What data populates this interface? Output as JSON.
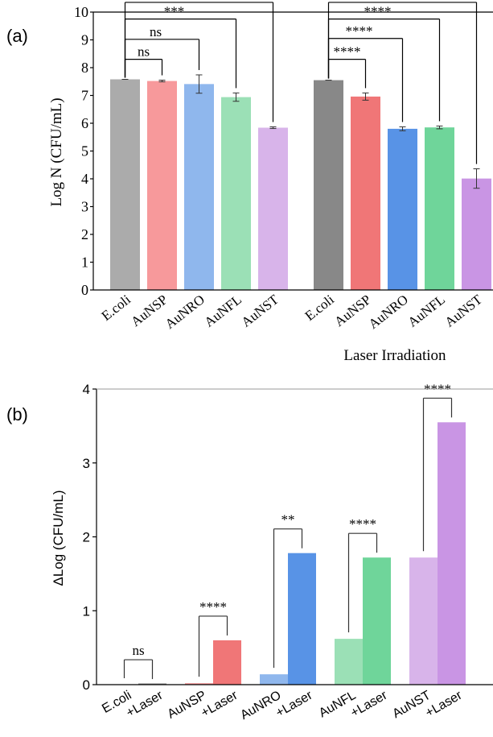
{
  "chart_data": [
    {
      "panel_label": "(a)",
      "type": "bar",
      "ylabel": "Log N (CFU/mL)",
      "ylim": [
        0,
        10
      ],
      "yticks": [
        0,
        1,
        2,
        3,
        4,
        5,
        6,
        7,
        8,
        9,
        10
      ],
      "group_label": "Laser Irradiation",
      "groups": [
        {
          "name": "",
          "categories": [
            "E.coli",
            "AuNSP",
            "AuNRO",
            "AuNFL",
            "AuNST"
          ],
          "values": [
            7.58,
            7.52,
            7.41,
            6.94,
            5.84
          ],
          "errors": [
            0,
            0.03,
            0.33,
            0.15,
            0.03
          ],
          "colors": [
            "#ababab",
            "#f7999b",
            "#8fb7ed",
            "#9be0b6",
            "#d8b4ea"
          ],
          "comparisons": [
            {
              "from": "E.coli",
              "to": "AuNSP",
              "label": "ns"
            },
            {
              "from": "E.coli",
              "to": "AuNRO",
              "label": "ns"
            },
            {
              "from": "E.coli",
              "to": "AuNFL",
              "label": "***"
            },
            {
              "from": "E.coli",
              "to": "AuNST",
              "label": "****"
            }
          ]
        },
        {
          "name": "Laser Irradiation",
          "categories": [
            "E.coli",
            "AuNSP",
            "AuNRO",
            "AuNFL",
            "AuNST"
          ],
          "values": [
            7.55,
            6.96,
            5.8,
            5.85,
            4.01
          ],
          "errors": [
            0,
            0.13,
            0.07,
            0.05,
            0.35
          ],
          "colors": [
            "#888888",
            "#f07677",
            "#5893e6",
            "#6fd59a",
            "#c995e4"
          ],
          "comparisons": [
            {
              "from": "E.coli",
              "to": "AuNSP",
              "label": "****"
            },
            {
              "from": "E.coli",
              "to": "AuNRO",
              "label": "****"
            },
            {
              "from": "E.coli",
              "to": "AuNFL",
              "label": "****"
            },
            {
              "from": "E.coli",
              "to": "AuNST",
              "label": "****"
            }
          ]
        }
      ]
    },
    {
      "panel_label": "(b)",
      "type": "bar",
      "ylabel": "ΔLog (CFU/mL)",
      "ylim": [
        0,
        4
      ],
      "yticks": [
        0,
        1,
        2,
        3,
        4
      ],
      "pairs": [
        {
          "labels": [
            "E.coli",
            "+Laser"
          ],
          "values": [
            0.0,
            0.01
          ],
          "colors": [
            "#ababab",
            "#888888"
          ],
          "sig": "ns"
        },
        {
          "labels": [
            "AuNSP",
            "+Laser"
          ],
          "values": [
            0.02,
            0.6
          ],
          "colors": [
            "#f7999b",
            "#f07677"
          ],
          "sig": "****"
        },
        {
          "labels": [
            "AuNRO",
            "+Laser"
          ],
          "values": [
            0.14,
            1.78
          ],
          "colors": [
            "#8fb7ed",
            "#5893e6"
          ],
          "sig": "**"
        },
        {
          "labels": [
            "AuNFL",
            "+Laser"
          ],
          "values": [
            0.62,
            1.72
          ],
          "colors": [
            "#9be0b6",
            "#6fd59a"
          ],
          "sig": "****"
        },
        {
          "labels": [
            "AuNST",
            "+Laser"
          ],
          "values": [
            1.72,
            3.55
          ],
          "colors": [
            "#d8b4ea",
            "#c995e4"
          ],
          "sig": "****"
        }
      ]
    }
  ]
}
